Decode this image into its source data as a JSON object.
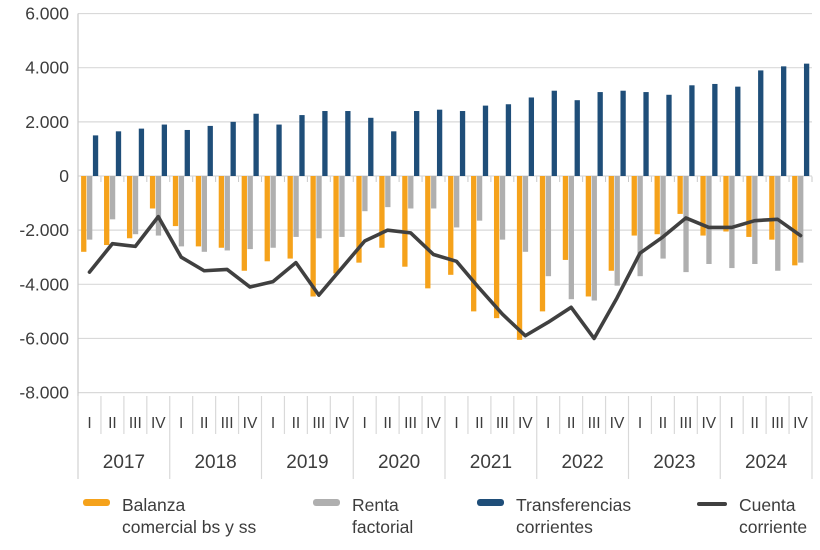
{
  "chart_data": {
    "type": "bar",
    "subtype": "grouped-bars-with-line-overlay",
    "title": "",
    "xlabel": "",
    "ylabel": "",
    "years": [
      "2017",
      "2018",
      "2019",
      "2020",
      "2021",
      "2022",
      "2023",
      "2024"
    ],
    "quarter_labels": [
      "I",
      "II",
      "III",
      "IV"
    ],
    "y_axis": {
      "min": -8000,
      "max": 6000,
      "step": 2000,
      "tick_values": [
        6000,
        4000,
        2000,
        0,
        -2000,
        -4000,
        -6000,
        -8000
      ],
      "tick_labels": [
        "6.000",
        "4.000",
        "2.000",
        "0",
        "-2.000",
        "-4.000",
        "-6.000",
        "-8.000"
      ]
    },
    "grid": true,
    "legend_position": "bottom",
    "series": [
      {
        "name": "Balanza comercial bs y ss",
        "type": "bar",
        "color": "#F5A21B",
        "values": [
          -2800,
          -2550,
          -2300,
          -1200,
          -1850,
          -2600,
          -2650,
          -3500,
          -3150,
          -3050,
          -4450,
          -3600,
          -3200,
          -2650,
          -3350,
          -4150,
          -3650,
          -5000,
          -5250,
          -6050,
          -5000,
          -3100,
          -4450,
          -3500,
          -2200,
          -2150,
          -1400,
          -2200,
          -2050,
          -2250,
          -2350,
          -3300
        ]
      },
      {
        "name": "Renta factorial",
        "type": "bar",
        "color": "#AFAFAF",
        "values": [
          -2350,
          -1600,
          -2150,
          -2200,
          -2600,
          -2800,
          -2750,
          -2700,
          -2650,
          -2250,
          -2300,
          -2250,
          -1300,
          -1150,
          -1200,
          -1200,
          -1900,
          -1650,
          -2350,
          -2800,
          -3700,
          -4550,
          -4600,
          -4050,
          -3700,
          -3050,
          -3550,
          -3250,
          -3400,
          -3250,
          -3500,
          -3200
        ]
      },
      {
        "name": "Transferencias corrientes",
        "type": "bar",
        "color": "#1F4E79",
        "values": [
          1500,
          1650,
          1750,
          1900,
          1700,
          1850,
          2000,
          2300,
          1900,
          2250,
          2400,
          2400,
          2150,
          1650,
          2400,
          2450,
          2400,
          2600,
          2650,
          2900,
          3150,
          2800,
          3100,
          3150,
          3100,
          3000,
          3350,
          3400,
          3300,
          3900,
          4050,
          4150
        ]
      },
      {
        "name": "Cuenta corriente",
        "type": "line",
        "color": "#404040",
        "values": [
          -3550,
          -2500,
          -2600,
          -1500,
          -3000,
          -3500,
          -3450,
          -4100,
          -3900,
          -3200,
          -4400,
          -3400,
          -2400,
          -2000,
          -2100,
          -2900,
          -3150,
          -4150,
          -5100,
          -5900,
          -5400,
          -4850,
          -6000,
          -4500,
          -2850,
          -2250,
          -1550,
          -1900,
          -1900,
          -1650,
          -1600,
          -2200
        ]
      }
    ]
  },
  "legend": {
    "items": [
      {
        "name": "Balanza comercial bs y ss",
        "line1": "Balanza",
        "line2": "comercial bs y ss",
        "color": "#F5A21B",
        "shape": "bar"
      },
      {
        "name": "Renta factorial",
        "line1": "Renta",
        "line2": "factorial",
        "color": "#AFAFAF",
        "shape": "bar"
      },
      {
        "name": "Transferencias corrientes",
        "line1": "Transferencias",
        "line2": "corrientes",
        "color": "#1F4E79",
        "shape": "bar"
      },
      {
        "name": "Cuenta corriente",
        "line1": "Cuenta",
        "line2": "corriente",
        "color": "#404040",
        "shape": "line"
      }
    ]
  }
}
